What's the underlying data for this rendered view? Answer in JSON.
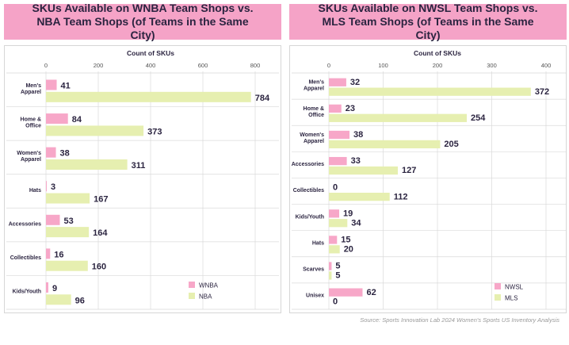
{
  "source": "Source: Sports Innovation Lab 2024 Women's Sports US Inventory Analysis",
  "colors": {
    "pink": "#f7a7c8",
    "green": "#e6efb0",
    "grid": "#d9d9d9",
    "text": "#2b2440",
    "title_bg": "#f5a3c7"
  },
  "chart_data": [
    {
      "type": "bar",
      "orientation": "horizontal",
      "title": "SKUs Available on WNBA Team Shops vs. NBA Team Shops (of Teams in the Same City)",
      "xlabel": "Count of SKUs",
      "xlim": [
        0,
        800
      ],
      "xticks": [
        "0",
        "200",
        "400",
        "600",
        "800"
      ],
      "tick_values": [
        0,
        200,
        400,
        600,
        800
      ],
      "categories": [
        "Men's Apparel",
        "Home & Office",
        "Women's Apparel",
        "Hats",
        "Accessories",
        "Collectibles",
        "Kids/Youth"
      ],
      "series": [
        {
          "name": "WNBA",
          "values": [
            41,
            84,
            38,
            3,
            53,
            16,
            9
          ]
        },
        {
          "name": "NBA",
          "values": [
            784,
            373,
            311,
            167,
            164,
            160,
            96
          ]
        }
      ],
      "legend": "bottom-right",
      "grid": true
    },
    {
      "type": "bar",
      "orientation": "horizontal",
      "title": "SKUs Available on NWSL Team Shops vs. MLS Team Shops (of Teams in the Same City)",
      "xlabel": "Count of SKUs",
      "xlim": [
        0,
        400
      ],
      "xticks": [
        "0",
        "100",
        "200",
        "300",
        "400"
      ],
      "tick_values": [
        0,
        100,
        200,
        300,
        400
      ],
      "categories": [
        "Men's Apparel",
        "Home & Office",
        "Women's Apparel",
        "Accessories",
        "Collectibles",
        "Kids/Youth",
        "Hats",
        "Scarves",
        "Unisex"
      ],
      "series": [
        {
          "name": "NWSL",
          "values": [
            32,
            23,
            38,
            33,
            0,
            19,
            15,
            5,
            62
          ]
        },
        {
          "name": "MLS",
          "values": [
            372,
            254,
            205,
            127,
            112,
            34,
            20,
            5,
            0
          ]
        }
      ],
      "legend": "bottom-right",
      "grid": true
    }
  ]
}
